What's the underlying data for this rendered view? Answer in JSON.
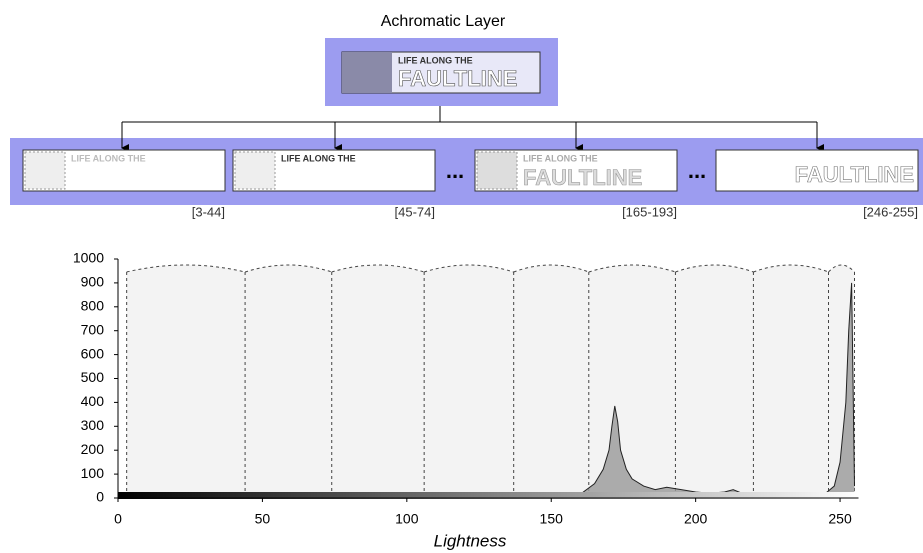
{
  "diagram": {
    "title": "Achromatic Layer",
    "source": {
      "line1": "LIFE ALONG THE",
      "line2": "FAULTLINE"
    },
    "thumbnails": [
      {
        "texts": [
          "LIFE ALONG THE"
        ],
        "range": "[3-44]"
      },
      {
        "texts": [
          "LIFE ALONG THE"
        ],
        "range": "[45-74]"
      },
      {
        "texts": [
          "LIFE ALONG THE",
          "FAULTLINE"
        ],
        "range": "[165-193]"
      },
      {
        "texts": [
          "FAULTLINE"
        ],
        "range": "[246-255]"
      }
    ],
    "ellipsis": "..."
  },
  "chart_data": {
    "type": "area",
    "x_label": "Lightness",
    "color": "#999999",
    "x": [
      0,
      10,
      30,
      40,
      45,
      50,
      55,
      60,
      70,
      80,
      90,
      100,
      110,
      120,
      130,
      140,
      150,
      160,
      165,
      168,
      170,
      171,
      172,
      173,
      174,
      176,
      178,
      182,
      186,
      190,
      195,
      200,
      205,
      210,
      213,
      216,
      220,
      230,
      240,
      245,
      248,
      250,
      252,
      253,
      254,
      255
    ],
    "values": [
      0,
      0,
      2,
      8,
      18,
      22,
      20,
      15,
      12,
      10,
      8,
      10,
      12,
      10,
      8,
      6,
      6,
      15,
      60,
      120,
      200,
      300,
      385,
      320,
      200,
      120,
      80,
      50,
      35,
      45,
      35,
      25,
      20,
      25,
      35,
      20,
      15,
      10,
      10,
      20,
      50,
      150,
      400,
      700,
      900,
      50
    ],
    "segment_bounds": [
      3,
      44,
      74,
      106,
      137,
      163,
      193,
      220,
      246,
      255
    ],
    "xlim": [
      0,
      255
    ],
    "ylim": [
      0,
      1000
    ],
    "xticks": [
      0,
      50,
      100,
      150,
      200,
      250
    ],
    "yticks": [
      0,
      100,
      200,
      300,
      400,
      500,
      600,
      700,
      800,
      900,
      1000
    ]
  }
}
